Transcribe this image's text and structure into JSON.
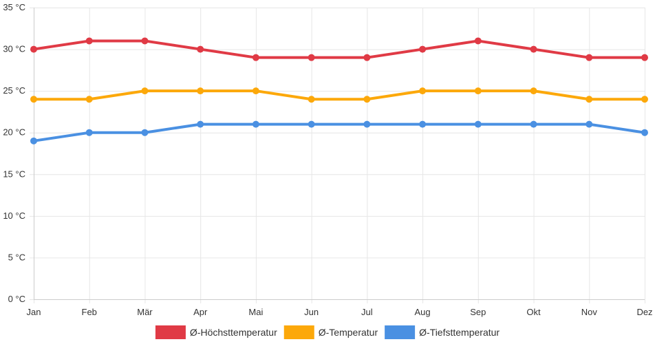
{
  "chart_data": {
    "type": "line",
    "title": "",
    "xlabel": "",
    "ylabel": "",
    "categories": [
      "Jan",
      "Feb",
      "Mär",
      "Apr",
      "Mai",
      "Jun",
      "Jul",
      "Aug",
      "Sep",
      "Okt",
      "Nov",
      "Dez"
    ],
    "ylim": [
      0,
      35
    ],
    "yticks": [
      0,
      5,
      10,
      15,
      20,
      25,
      30,
      35
    ],
    "y_unit": "°C",
    "grid": true,
    "legend_position": "bottom",
    "series": [
      {
        "name": "Ø-Höchsttemperatur",
        "color": "#e03a45",
        "values": [
          30,
          31,
          31,
          30,
          29,
          29,
          29,
          30,
          31,
          30,
          29,
          29
        ]
      },
      {
        "name": "Ø-Temperatur",
        "color": "#fca80a",
        "values": [
          24,
          24,
          25,
          25,
          25,
          24,
          24,
          25,
          25,
          25,
          24,
          24
        ]
      },
      {
        "name": "Ø-Tiefsttemperatur",
        "color": "#4a90e2",
        "values": [
          19,
          20,
          20,
          21,
          21,
          21,
          21,
          21,
          21,
          21,
          21,
          20
        ]
      }
    ]
  }
}
